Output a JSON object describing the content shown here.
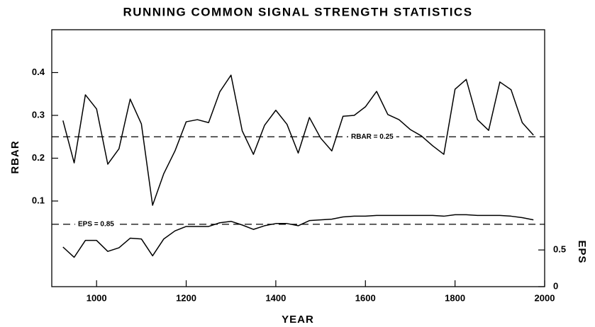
{
  "chart_data": {
    "type": "line",
    "title": "RUNNING COMMON SIGNAL STRENGTH STATISTICS",
    "x_label": "YEAR",
    "y_label": "RBAR",
    "y2_label": "EPS",
    "x": [
      925,
      950,
      975,
      1000,
      1025,
      1050,
      1075,
      1100,
      1125,
      1150,
      1175,
      1200,
      1225,
      1250,
      1275,
      1300,
      1325,
      1350,
      1375,
      1400,
      1425,
      1450,
      1475,
      1500,
      1525,
      1550,
      1575,
      1600,
      1625,
      1650,
      1675,
      1700,
      1725,
      1750,
      1775,
      1800,
      1825,
      1850,
      1875,
      1900,
      1925,
      1950,
      1975
    ],
    "series": [
      {
        "name": "RBAR",
        "color": "#000000",
        "axis": "y",
        "values": [
          0.288,
          0.189,
          0.348,
          0.315,
          0.186,
          0.222,
          0.338,
          0.28,
          0.09,
          0.164,
          0.217,
          0.285,
          0.29,
          0.283,
          0.355,
          0.394,
          0.264,
          0.209,
          0.277,
          0.312,
          0.279,
          0.212,
          0.295,
          0.247,
          0.217,
          0.298,
          0.3,
          0.32,
          0.356,
          0.302,
          0.29,
          0.267,
          0.252,
          0.229,
          0.209,
          0.361,
          0.384,
          0.29,
          0.265,
          0.378,
          0.36,
          0.283,
          0.254
        ]
      },
      {
        "name": "EPS",
        "color": "#000000",
        "axis": "y2",
        "values": [
          0.54,
          0.4,
          0.63,
          0.63,
          0.48,
          0.53,
          0.66,
          0.65,
          0.42,
          0.65,
          0.76,
          0.82,
          0.82,
          0.82,
          0.87,
          0.89,
          0.84,
          0.78,
          0.83,
          0.86,
          0.86,
          0.83,
          0.9,
          0.91,
          0.92,
          0.95,
          0.96,
          0.96,
          0.97,
          0.97,
          0.97,
          0.97,
          0.97,
          0.97,
          0.96,
          0.98,
          0.98,
          0.97,
          0.97,
          0.97,
          0.96,
          0.94,
          0.91
        ]
      }
    ],
    "reference_lines": [
      {
        "label": "RBAR = 0.25",
        "value": 0.25,
        "axis": "y"
      },
      {
        "label": "EPS = 0.85",
        "value": 0.85,
        "axis": "y2"
      }
    ],
    "xlim": [
      900,
      2000
    ],
    "xticks": [
      1000,
      1200,
      1400,
      1600,
      1800,
      2000
    ],
    "ylim": [
      -0.1,
      0.5
    ],
    "yticks": [
      0.1,
      0.2,
      0.3,
      0.4
    ],
    "y2lim": [
      0,
      3.5
    ],
    "y2ticks": [
      0,
      0.5
    ],
    "grid": false
  }
}
